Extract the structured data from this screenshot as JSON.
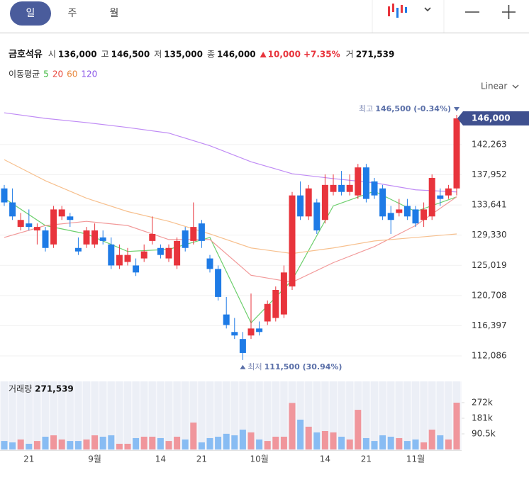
{
  "tabs": [
    "일",
    "주",
    "월"
  ],
  "info": {
    "name": "금호석유",
    "items": [
      {
        "label": "시",
        "value": "136,000"
      },
      {
        "label": "고",
        "value": "146,500"
      },
      {
        "label": "저",
        "value": "135,000"
      },
      {
        "label": "종",
        "value": "146,000"
      }
    ],
    "change": "10,000",
    "change_pct": "+7.35%",
    "volume_label": "거",
    "volume": "271,539"
  },
  "ma_label": "이동평균",
  "scale_label": "Linear",
  "chart_data": {
    "type": "candlestick",
    "categories": [
      null,
      null,
      null,
      "21",
      null,
      null,
      null,
      null,
      null,
      null,
      null,
      "9월",
      null,
      null,
      null,
      null,
      null,
      null,
      null,
      "14",
      null,
      null,
      null,
      null,
      "21",
      null,
      null,
      null,
      null,
      null,
      null,
      "10월",
      null,
      null,
      null,
      null,
      null,
      null,
      null,
      "14",
      null,
      null,
      null,
      null,
      "21",
      null,
      null,
      null,
      null,
      null,
      "11월",
      null,
      null,
      null,
      null,
      null
    ],
    "open": [
      136000,
      134000,
      130500,
      131000,
      130000,
      130000,
      128000,
      132000,
      132000,
      127500,
      128000,
      128000,
      129000,
      128000,
      125000,
      125500,
      125000,
      126000,
      128500,
      127500,
      126000,
      125000,
      130000,
      128500,
      131000,
      126000,
      124500,
      118000,
      115500,
      114500,
      115000,
      116000,
      117000,
      117500,
      118000,
      122000,
      135000,
      132000,
      134000,
      131500,
      135500,
      136500,
      135500,
      135000,
      139000,
      137000,
      136000,
      132500,
      132500,
      133500,
      133000,
      131500,
      132000,
      135000,
      135000,
      136000
    ],
    "high": [
      136500,
      136000,
      132500,
      133000,
      131000,
      130500,
      133500,
      133500,
      132500,
      129000,
      130500,
      131000,
      130000,
      129000,
      128000,
      127500,
      126000,
      128000,
      132000,
      128000,
      128000,
      129000,
      130500,
      134000,
      131500,
      126500,
      125000,
      120500,
      117500,
      115500,
      121000,
      117000,
      120000,
      122000,
      125000,
      135500,
      137000,
      136500,
      134500,
      138000,
      138000,
      138500,
      138000,
      139500,
      139500,
      137500,
      136500,
      133500,
      134500,
      134500,
      133500,
      134000,
      138000,
      136000,
      136500,
      146500
    ],
    "low": [
      133500,
      131500,
      130000,
      130000,
      128000,
      127000,
      127500,
      131500,
      130500,
      126500,
      127500,
      127500,
      128000,
      124500,
      124500,
      125000,
      123500,
      125500,
      128000,
      126000,
      125500,
      124500,
      127000,
      128000,
      127500,
      124000,
      120000,
      116000,
      114500,
      111500,
      114500,
      115000,
      116500,
      117000,
      117500,
      121500,
      131500,
      131500,
      129500,
      131000,
      135000,
      135000,
      135000,
      134500,
      134000,
      134500,
      131500,
      129500,
      132000,
      131500,
      130500,
      130500,
      131500,
      133500,
      134500,
      135000
    ],
    "close": [
      134000,
      132000,
      131500,
      130500,
      130500,
      127500,
      133000,
      133000,
      131500,
      127000,
      130000,
      130000,
      128500,
      125000,
      126500,
      126500,
      124000,
      127000,
      129500,
      126500,
      127500,
      128500,
      127500,
      130500,
      128500,
      124500,
      120500,
      116500,
      115000,
      112500,
      116000,
      115500,
      119500,
      121500,
      124000,
      135000,
      132000,
      136000,
      130000,
      136500,
      136500,
      135500,
      136500,
      139000,
      134500,
      135000,
      132000,
      131500,
      133000,
      132000,
      131000,
      133000,
      137500,
      134500,
      136000,
      146000
    ],
    "volume": [
      49000,
      41000,
      58000,
      33000,
      49000,
      74000,
      82000,
      58000,
      49000,
      49000,
      58000,
      82000,
      74000,
      82000,
      33000,
      33000,
      66000,
      74000,
      74000,
      66000,
      49000,
      74000,
      58000,
      156000,
      41000,
      66000,
      74000,
      91000,
      82000,
      115000,
      99000,
      58000,
      49000,
      74000,
      74000,
      270000,
      173000,
      132000,
      99000,
      107000,
      99000,
      74000,
      58000,
      230000,
      66000,
      49000,
      82000,
      74000,
      66000,
      49000,
      58000,
      41000,
      115000,
      82000,
      58000,
      271539
    ],
    "moving_averages": [
      {
        "name": "5",
        "color": "#3db83d",
        "line_color": "#6ccf6c",
        "x": [
          0,
          5,
          10,
          15,
          20,
          25,
          30,
          35,
          40,
          45,
          50,
          55
        ],
        "values": [
          134600,
          130700,
          129500,
          127000,
          127300,
          129000,
          116800,
          122900,
          133500,
          135600,
          132700,
          134800
        ]
      },
      {
        "name": "20",
        "color": "#e8463c",
        "line_color": "#f29a9a",
        "x": [
          0,
          5,
          10,
          15,
          20,
          25,
          30,
          35,
          40,
          45,
          50,
          55
        ],
        "values": [
          129000,
          130700,
          131300,
          130700,
          128700,
          128700,
          123600,
          122600,
          125400,
          127700,
          130700,
          134800
        ]
      },
      {
        "name": "60",
        "color": "#e8863c",
        "line_color": "#f7c08e",
        "x": [
          0,
          5,
          10,
          15,
          20,
          25,
          30,
          35,
          40,
          45,
          50,
          55
        ],
        "values": [
          140100,
          137100,
          134600,
          132700,
          131300,
          129500,
          127500,
          126700,
          127500,
          128500,
          129000,
          129500
        ]
      },
      {
        "name": "120",
        "color": "#8a56e8",
        "line_color": "#c08cf5",
        "x": [
          0,
          5,
          10,
          15,
          20,
          25,
          30,
          35,
          40,
          45,
          50,
          55
        ],
        "values": [
          146800,
          146000,
          145400,
          144700,
          143900,
          142100,
          139800,
          138100,
          137400,
          136800,
          135800,
          135500
        ]
      }
    ],
    "up_color": "#e8343c",
    "down_color": "#1e7be6",
    "volume_up_color": "#f0969c",
    "volume_down_color": "#88bcf3",
    "ylim": [
      109760,
      147720
    ],
    "yticks": [
      {
        "value": 112086,
        "label": "112,086"
      },
      {
        "value": 116397,
        "label": "116,397"
      },
      {
        "value": 120708,
        "label": "120,708"
      },
      {
        "value": 125019,
        "label": "125,019"
      },
      {
        "value": 129330,
        "label": "129,330"
      },
      {
        "value": 133641,
        "label": "133,641"
      },
      {
        "value": 137952,
        "label": "137,952"
      },
      {
        "value": 142263,
        "label": "142,263"
      }
    ],
    "volume_ylim": [
      0,
      386700
    ],
    "volume_yticks": [
      {
        "value": 90500,
        "label": "90.5k"
      },
      {
        "value": 181000,
        "label": "181k"
      },
      {
        "value": 272000,
        "label": "272k"
      }
    ],
    "grid": true,
    "current_price_label": "146,000",
    "annotations": {
      "max_label": "최고",
      "max_text": "146,500 (-0.34%)",
      "min_label": "최저",
      "min_text": "111,500 (30.94%)"
    },
    "volume_title": "거래량",
    "volume_value_label": "271,539"
  }
}
